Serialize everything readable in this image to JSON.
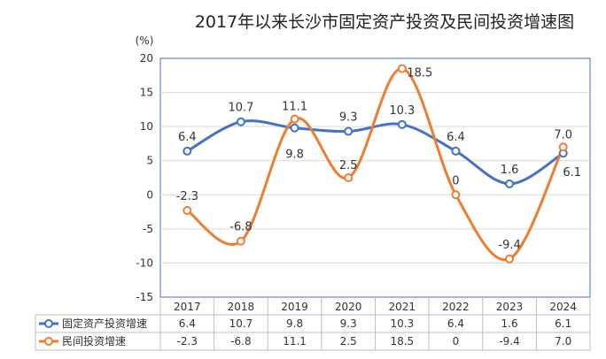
{
  "chart_data": {
    "type": "line",
    "title": "2017年以来长沙市固定资产投资及民间投资增速图",
    "ylabel": "(%)",
    "xlabel": "",
    "ylim": [
      -15,
      20
    ],
    "yticks": [
      20,
      15,
      10,
      5,
      0,
      -5,
      -10,
      -15
    ],
    "categories": [
      "2017",
      "2018",
      "2019",
      "2020",
      "2021",
      "2022",
      "2023",
      "2024"
    ],
    "grid": true,
    "legend": "data-table-left",
    "series": [
      {
        "name": "固定资产投资增速",
        "color": "#4472C4",
        "values": [
          6.4,
          10.7,
          9.8,
          9.3,
          10.3,
          6.4,
          1.6,
          6.1
        ],
        "labels": [
          "6.4",
          "10.7",
          "9.8",
          "9.3",
          "10.3",
          "6.4",
          "1.6",
          "6.1"
        ]
      },
      {
        "name": "民间投资增速",
        "color": "#ED7D31",
        "values": [
          -2.3,
          -6.8,
          11.1,
          2.5,
          18.5,
          0,
          -9.4,
          7.0
        ],
        "labels": [
          "-2.3",
          "-6.8",
          "11.1",
          "2.5",
          "18.5",
          "0",
          "-9.4",
          "7.0"
        ]
      }
    ]
  }
}
